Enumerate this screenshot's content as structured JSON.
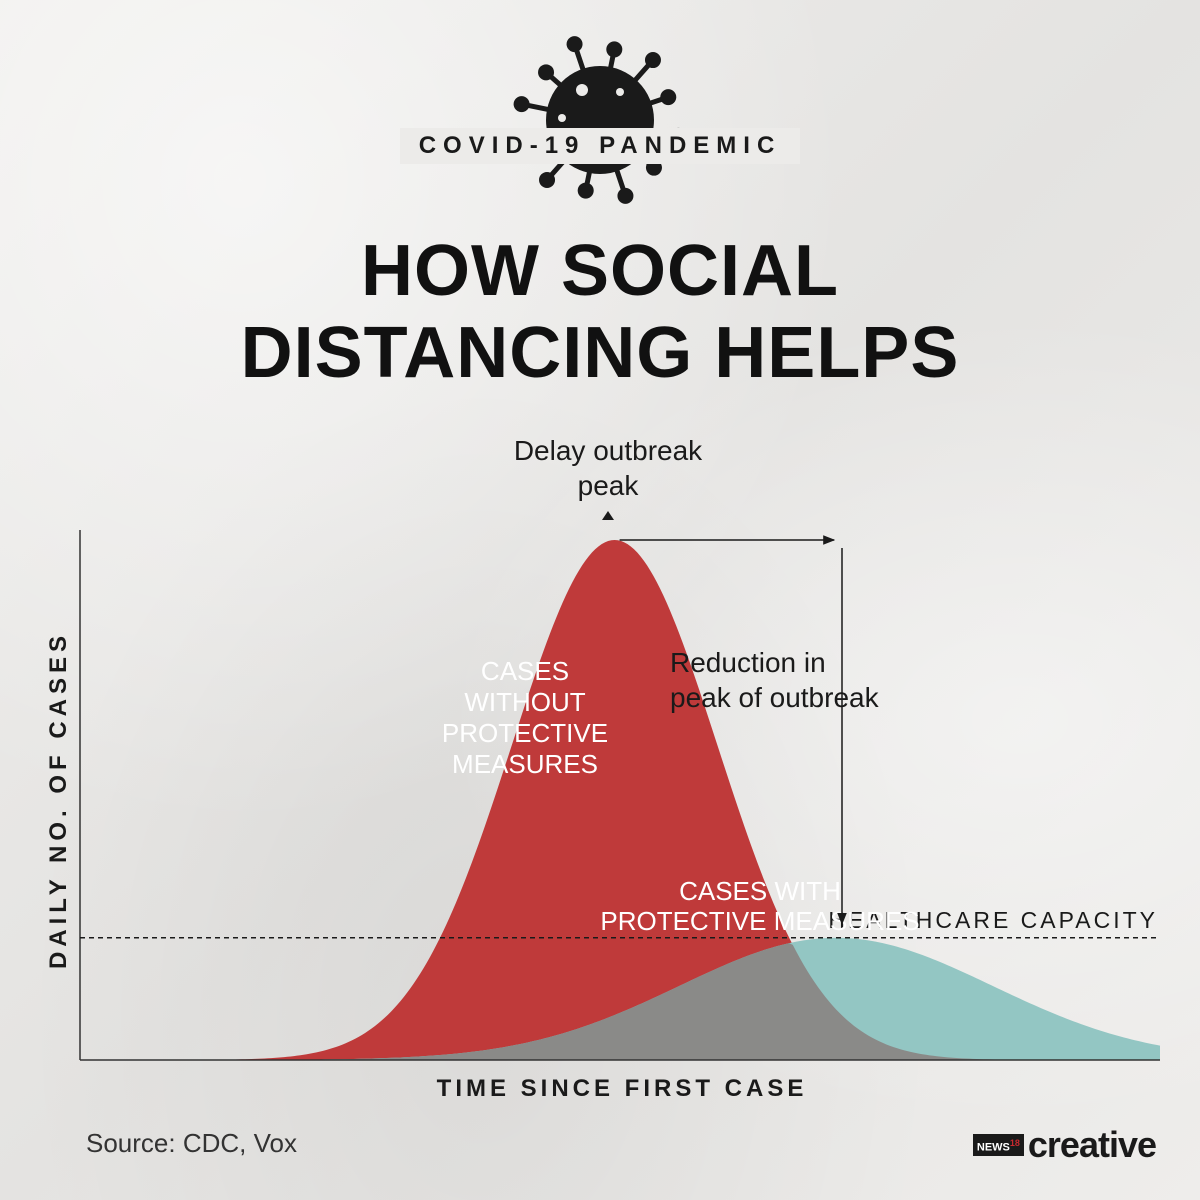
{
  "header": {
    "badge": "COVID-19 PANDEMIC",
    "title_line1": "HOW SOCIAL",
    "title_line2": "DISTANCING HELPS"
  },
  "chart_data": {
    "type": "area",
    "xlabel": "TIME SINCE FIRST CASE",
    "ylabel": "DAILY NO. OF CASES",
    "series": [
      {
        "label": "CASES WITHOUT PROTECTIVE MEASURES",
        "label_lines": [
          "CASES",
          "WITHOUT",
          "PROTECTIVE",
          "MEASURES"
        ],
        "peak_x": 0.495,
        "width": 0.095,
        "peak_y": 1.0,
        "color": "#bf3a3a"
      },
      {
        "label": "CASES WITH PROTECTIVE MEASURES",
        "label_lines": [
          "CASES WITH",
          "PROTECTIVE MEASURES"
        ],
        "peak_x": 0.7,
        "width": 0.145,
        "peak_y": 0.235,
        "color": "#93c6c3"
      }
    ],
    "overlap_color": "#8a8a88",
    "threshold": {
      "label": "HEALTHCARE CAPACITY",
      "y": 0.235
    },
    "annotations": [
      {
        "label_lines": [
          "Delay outbreak",
          "peak"
        ]
      },
      {
        "label_lines": [
          "Reduction in",
          "peak of outbreak"
        ]
      }
    ]
  },
  "footer": {
    "source": "Source: CDC, Vox",
    "brand_mark": "NEWS",
    "brand_mark_num": "18",
    "brand_word": "creative"
  }
}
